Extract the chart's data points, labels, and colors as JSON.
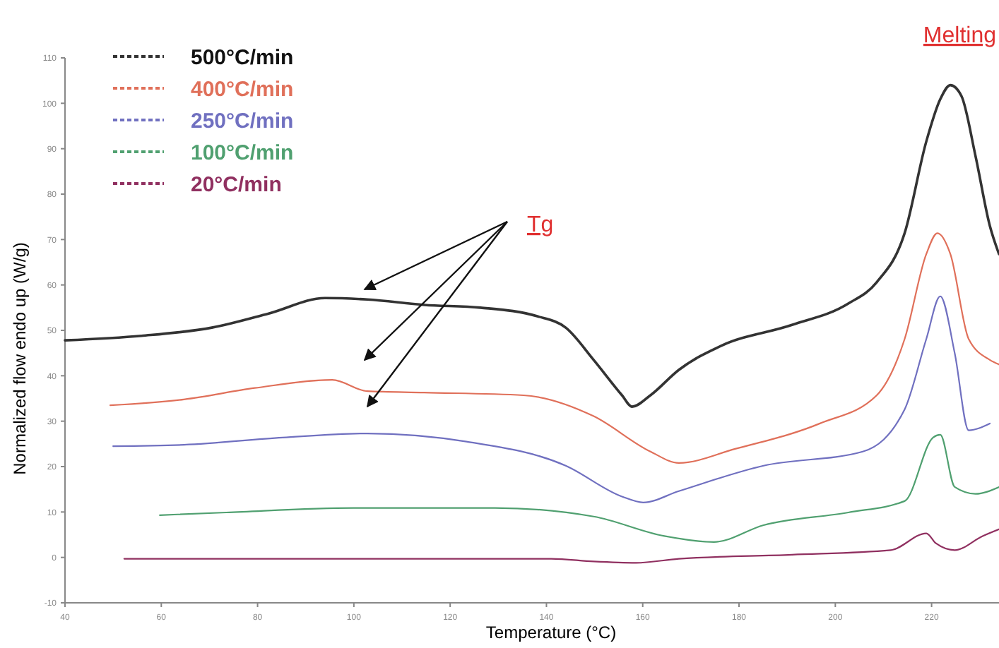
{
  "chart_data": {
    "type": "line",
    "xlabel": "Temperature (°C)",
    "ylabel": "Normalized flow endo up (W/g)",
    "xlim": [
      40,
      234
    ],
    "xticks": [
      40,
      60,
      80,
      100,
      120,
      140,
      160,
      180,
      200,
      220
    ],
    "ylim": [
      -10,
      110
    ],
    "yticks": [
      -10,
      0,
      10,
      20,
      30,
      40,
      50,
      60,
      70,
      80,
      90,
      100,
      110
    ],
    "legend": "top left",
    "grid": false,
    "annotations": [
      "Tg",
      "Melting"
    ],
    "series": [
      {
        "name": "500°C/min",
        "color": "#333333",
        "x": [
          40,
          55.9,
          70.5,
          82.3,
          94,
          102.8,
          114.6,
          126.3,
          138.1,
          144,
          149.8,
          155.7,
          157.8,
          161.6,
          167.5,
          176.3,
          191,
          202.7,
          208.6,
          214.4,
          218.9,
          221.8,
          223.9,
          226.2,
          229.1,
          232.1,
          234
        ],
        "values": [
          47.8,
          48.8,
          50.6,
          53.7,
          57.1,
          56.8,
          55.6,
          55,
          53.1,
          50.6,
          43.5,
          35.7,
          33.2,
          35.7,
          41.3,
          46.6,
          51.2,
          55.9,
          60.6,
          71.4,
          91.6,
          100.9,
          104,
          101.6,
          88.5,
          73,
          66.8
        ]
      },
      {
        "name": "400°C/min",
        "color": "#e0705a",
        "x": [
          49.4,
          64.7,
          79.4,
          95.5,
          102.8,
          114.6,
          135.2,
          149.8,
          161.6,
          167.5,
          179.2,
          196.8,
          208.6,
          214.4,
          218.9,
          221.2,
          223.9,
          227.7,
          232.1,
          234
        ],
        "values": [
          33.5,
          34.8,
          37.3,
          39.1,
          36.6,
          36.3,
          35.7,
          31.1,
          23.3,
          20.8,
          23.9,
          29.5,
          35.7,
          48.1,
          66.8,
          71.4,
          66.8,
          48.1,
          43.5,
          42.5
        ]
      },
      {
        "name": "250°C/min",
        "color": "#7070c0",
        "x": [
          50,
          64.7,
          85.2,
          102.8,
          123.4,
          144,
          155.7,
          160.1,
          167.5,
          185.1,
          205.7,
          214.4,
          218.9,
          221.8,
          224.8,
          227.7,
          232.1
        ],
        "values": [
          24.5,
          24.8,
          26.4,
          27.3,
          25.5,
          20.2,
          13.4,
          12.1,
          14.6,
          20.2,
          23.3,
          32.6,
          48.1,
          57.5,
          45,
          28,
          29.5
        ]
      },
      {
        "name": "100°C/min",
        "color": "#50a070",
        "x": [
          59.7,
          73.5,
          99.9,
          129.3,
          149.8,
          164.5,
          174.8,
          185.1,
          202.7,
          214.4,
          220.3,
          221.8,
          224.8,
          229.1,
          234
        ],
        "values": [
          9.3,
          9.9,
          10.9,
          10.9,
          9,
          4.7,
          3.4,
          7.1,
          9.9,
          12.4,
          26.4,
          27,
          15.5,
          14,
          15.5
        ]
      },
      {
        "name": "20°C/min",
        "color": "#903060",
        "x": [
          52.3,
          85.2,
          141,
          149.8,
          158.6,
          167.5,
          191,
          211.5,
          218.9,
          220.9,
          224.8,
          230.6,
          234
        ],
        "values": [
          -0.3,
          -0.3,
          -0.3,
          -0.9,
          -1.2,
          -0.3,
          0.6,
          1.6,
          5.3,
          3.1,
          1.6,
          4.7,
          6.2
        ]
      }
    ]
  }
}
